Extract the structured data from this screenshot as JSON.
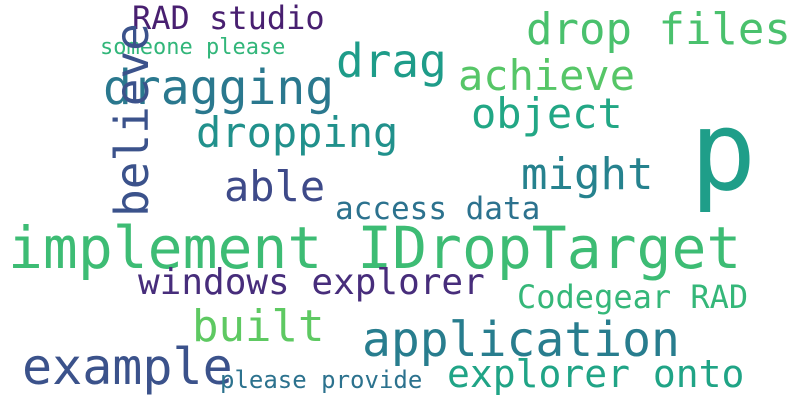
{
  "words": [
    {
      "id": "implement-idroptarget",
      "text": "implement IDropTarget",
      "color": "#3dbc74"
    },
    {
      "id": "p",
      "text": "p",
      "color": "#1f9e89"
    },
    {
      "id": "drop-files",
      "text": "drop files",
      "color": "#4ac16d"
    },
    {
      "id": "rad-studio",
      "text": "RAD studio",
      "color": "#481f70"
    },
    {
      "id": "drag",
      "text": "drag",
      "color": "#1e9c89"
    },
    {
      "id": "achieve",
      "text": "achieve",
      "color": "#56c667"
    },
    {
      "id": "dragging",
      "text": "dragging",
      "color": "#2a788e"
    },
    {
      "id": "someone-please",
      "text": "someone please",
      "color": "#32b67a"
    },
    {
      "id": "believe",
      "text": "believe",
      "color": "#3b528b"
    },
    {
      "id": "object",
      "text": "object",
      "color": "#22a785"
    },
    {
      "id": "dropping",
      "text": "dropping",
      "color": "#21918c"
    },
    {
      "id": "might",
      "text": "might",
      "color": "#26828e"
    },
    {
      "id": "able",
      "text": "able",
      "color": "#3e4a89"
    },
    {
      "id": "access-data",
      "text": "access data",
      "color": "#2c728e"
    },
    {
      "id": "windows-explorer",
      "text": "windows explorer",
      "color": "#472d7b"
    },
    {
      "id": "codegear-rad",
      "text": "Codegear RAD",
      "color": "#35b779"
    },
    {
      "id": "built",
      "text": "built",
      "color": "#5ec962"
    },
    {
      "id": "application",
      "text": "application",
      "color": "#287d8e"
    },
    {
      "id": "example",
      "text": "example",
      "color": "#3b528b"
    },
    {
      "id": "please-provide",
      "text": "please provide",
      "color": "#2c728e"
    },
    {
      "id": "explorer-onto",
      "text": "explorer onto",
      "color": "#20a486"
    }
  ]
}
